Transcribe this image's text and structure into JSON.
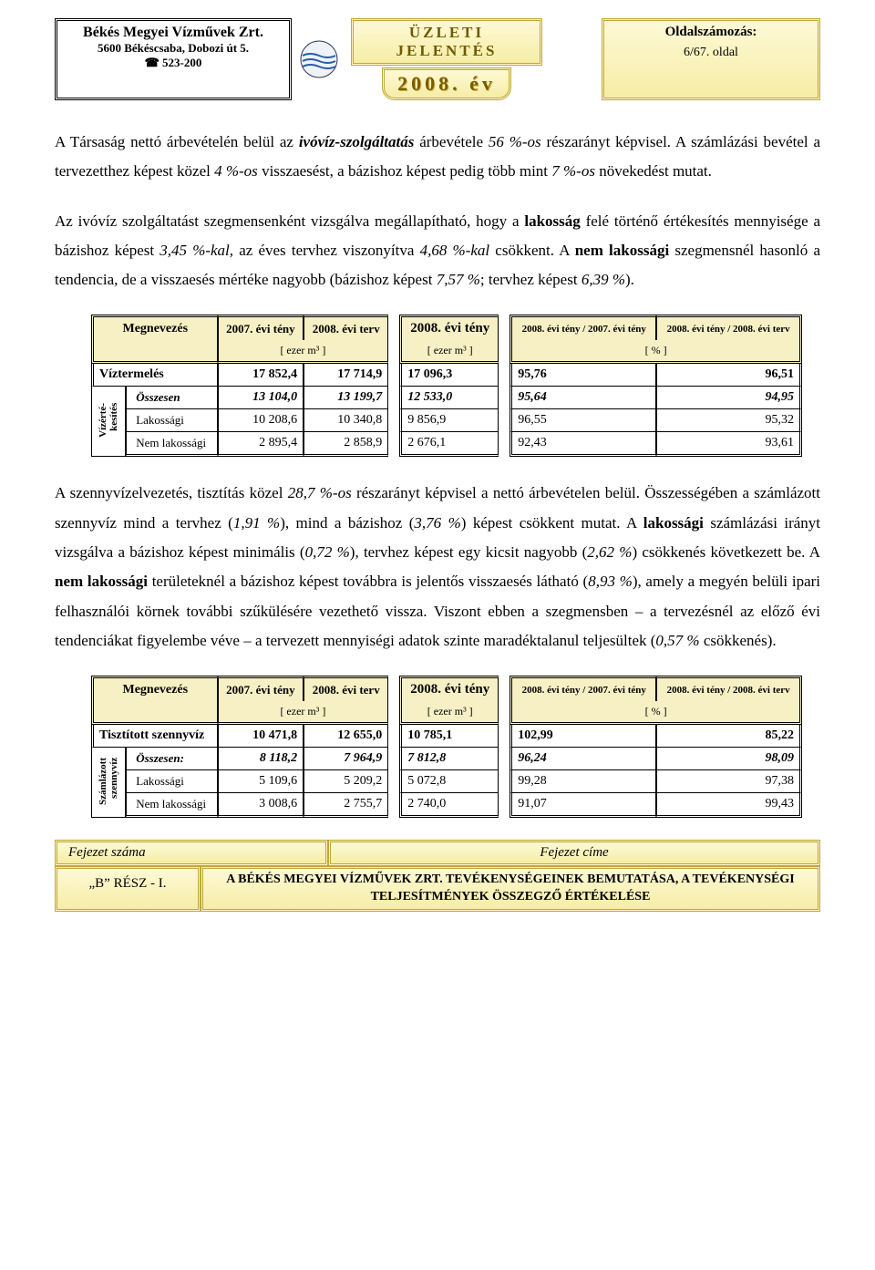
{
  "header": {
    "company": "Békés Megyei Vízművek Zrt.",
    "address": "5600 Békéscsaba, Dobozi út 5.",
    "phone": "☎ 523-200",
    "report_title": "ÜZLETI JELENTÉS",
    "year": "2008. év",
    "pagination_label": "Oldalszámozás:",
    "page": "6/67. oldal"
  },
  "para1_a": "A Társaság nettó árbevételén belül az ",
  "para1_b": "ivóvíz-szolgáltatás",
  "para1_c": " árbevétele ",
  "para1_d": "56 %-os",
  "para1_e": " részarányt képvisel. A számlázási bevétel a tervezetthez képest közel ",
  "para1_f": "4 %-os",
  "para1_g": " visszaesést, a bázishoz képest pedig több mint ",
  "para1_h": "7 %-os",
  "para1_i": " növekedést mutat.",
  "para2_a": "Az ivóvíz szolgáltatást szegmensenként vizsgálva megállapítható, hogy a ",
  "para2_b": "lakosság",
  "para2_c": " felé történő értékesítés mennyisége a bázishoz képest ",
  "para2_d": "3,45 %-kal,",
  "para2_e": " az éves tervhez viszonyítva ",
  "para2_f": "4,68 %-kal",
  "para2_g": " csökkent. A ",
  "para2_h": "nem lakossági",
  "para2_i": " szegmensnél hasonló a tendencia, de a visszaesés mértéke nagyobb (bázishoz képest ",
  "para2_j": "7,57 %",
  "para2_k": "; tervhez képest ",
  "para2_l": "6,39 %",
  "para2_m": ").",
  "tbl1": {
    "head": {
      "name": "Megnevezés",
      "c1": "2007. évi tény",
      "c2": "2008. évi terv",
      "c3": "2008. évi tény",
      "c4": "2008. évi tény / 2007. évi tény",
      "c5": "2008. évi tény / 2008. évi terv",
      "u1": "[ ezer m³ ]",
      "u2": "[ ezer m³ ]",
      "u3": "[ % ]"
    },
    "vlabel": "Vízérté-\nkesítés",
    "rows": [
      {
        "label": "Víztermelés",
        "v": [
          "17 852,4",
          "17 714,9",
          "17 096,3",
          "95,76",
          "96,51"
        ],
        "bold": true,
        "first": true
      },
      {
        "label": "Összesen",
        "v": [
          "13 104,0",
          "13 199,7",
          "12 533,0",
          "95,64",
          "94,95"
        ],
        "bold": true,
        "ital": true,
        "sub": true
      },
      {
        "label": "Lakossági",
        "v": [
          "10 208,6",
          "10 340,8",
          "9 856,9",
          "96,55",
          "95,32"
        ],
        "sub": true
      },
      {
        "label": "Nem lakossági",
        "v": [
          "2 895,4",
          "2 858,9",
          "2 676,1",
          "92,43",
          "93,61"
        ],
        "sub": true
      }
    ]
  },
  "para3_a": "A szennyvízelvezetés, tisztítás közel ",
  "para3_b": "28,7 %-os",
  "para3_c": " részarányt képvisel a nettó árbevételen belül. Összességében a számlázott szennyvíz mind a tervhez (",
  "para3_d": "1,91 %",
  "para3_e": "), mind a bázishoz (",
  "para3_f": "3,76 %",
  "para3_g": ") képest csökkent mutat. A ",
  "para3_h": "lakossági",
  "para3_i": " számlázási irányt vizsgálva a bázishoz képest minimális (",
  "para3_j": "0,72 %",
  "para3_k": "), tervhez képest egy kicsit nagyobb (",
  "para3_l": "2,62 %",
  "para3_m": ") csökkenés következett be. A ",
  "para3_n": "nem lakossági",
  "para3_o": " területeknél a bázishoz képest továbbra is jelentős visszaesés látható (",
  "para3_p": "8,93 %",
  "para3_q": "), amely a megyén belüli ipari felhasználói körnek további szűkülésére vezethető vissza. Viszont ebben a szegmensben – a tervezésnél az előző évi tendenciákat figyelembe véve – a tervezett mennyiségi adatok szinte maradéktalanul teljesültek (",
  "para3_r": "0,57 %",
  "para3_s": " csökkenés).",
  "tbl2": {
    "head": {
      "name": "Megnevezés",
      "c1": "2007. évi tény",
      "c2": "2008. évi terv",
      "c3": "2008. évi tény",
      "c4": "2008. évi tény / 2007. évi tény",
      "c5": "2008. évi tény / 2008. évi terv",
      "u1": "[ ezer m³ ]",
      "u2": "[ ezer m³ ]",
      "u3": "[ % ]"
    },
    "vlabel": "Számlázott\nszennyvíz",
    "rows": [
      {
        "label": "Tisztított szennyvíz",
        "v": [
          "10 471,8",
          "12 655,0",
          "10 785,1",
          "102,99",
          "85,22"
        ],
        "bold": true,
        "first": true
      },
      {
        "label": "Összesen:",
        "v": [
          "8 118,2",
          "7 964,9",
          "7 812,8",
          "96,24",
          "98,09"
        ],
        "bold": true,
        "ital": true,
        "sub": true
      },
      {
        "label": "Lakossági",
        "v": [
          "5 109,6",
          "5 209,2",
          "5 072,8",
          "99,28",
          "97,38"
        ],
        "sub": true
      },
      {
        "label": "Nem lakossági",
        "v": [
          "3 008,6",
          "2 755,7",
          "2 740,0",
          "91,07",
          "99,43"
        ],
        "sub": true
      }
    ]
  },
  "footer": {
    "chap_num_label": "Fejezet száma",
    "chap_title_label": "Fejezet címe",
    "part": "„B” RÉSZ - I.",
    "title": "A BÉKÉS MEGYEI VÍZMŰVEK ZRT. TEVÉKENYSÉGEINEK BEMUTATÁSA, A TEVÉKENYSÉGI TELJESÍTMÉNYEK ÖSSZEGZŐ ÉRTÉKELÉSE"
  },
  "style": {
    "accent_bg": "#f6f0c4",
    "gold_border": "#bfa93a",
    "text": "#000000"
  }
}
